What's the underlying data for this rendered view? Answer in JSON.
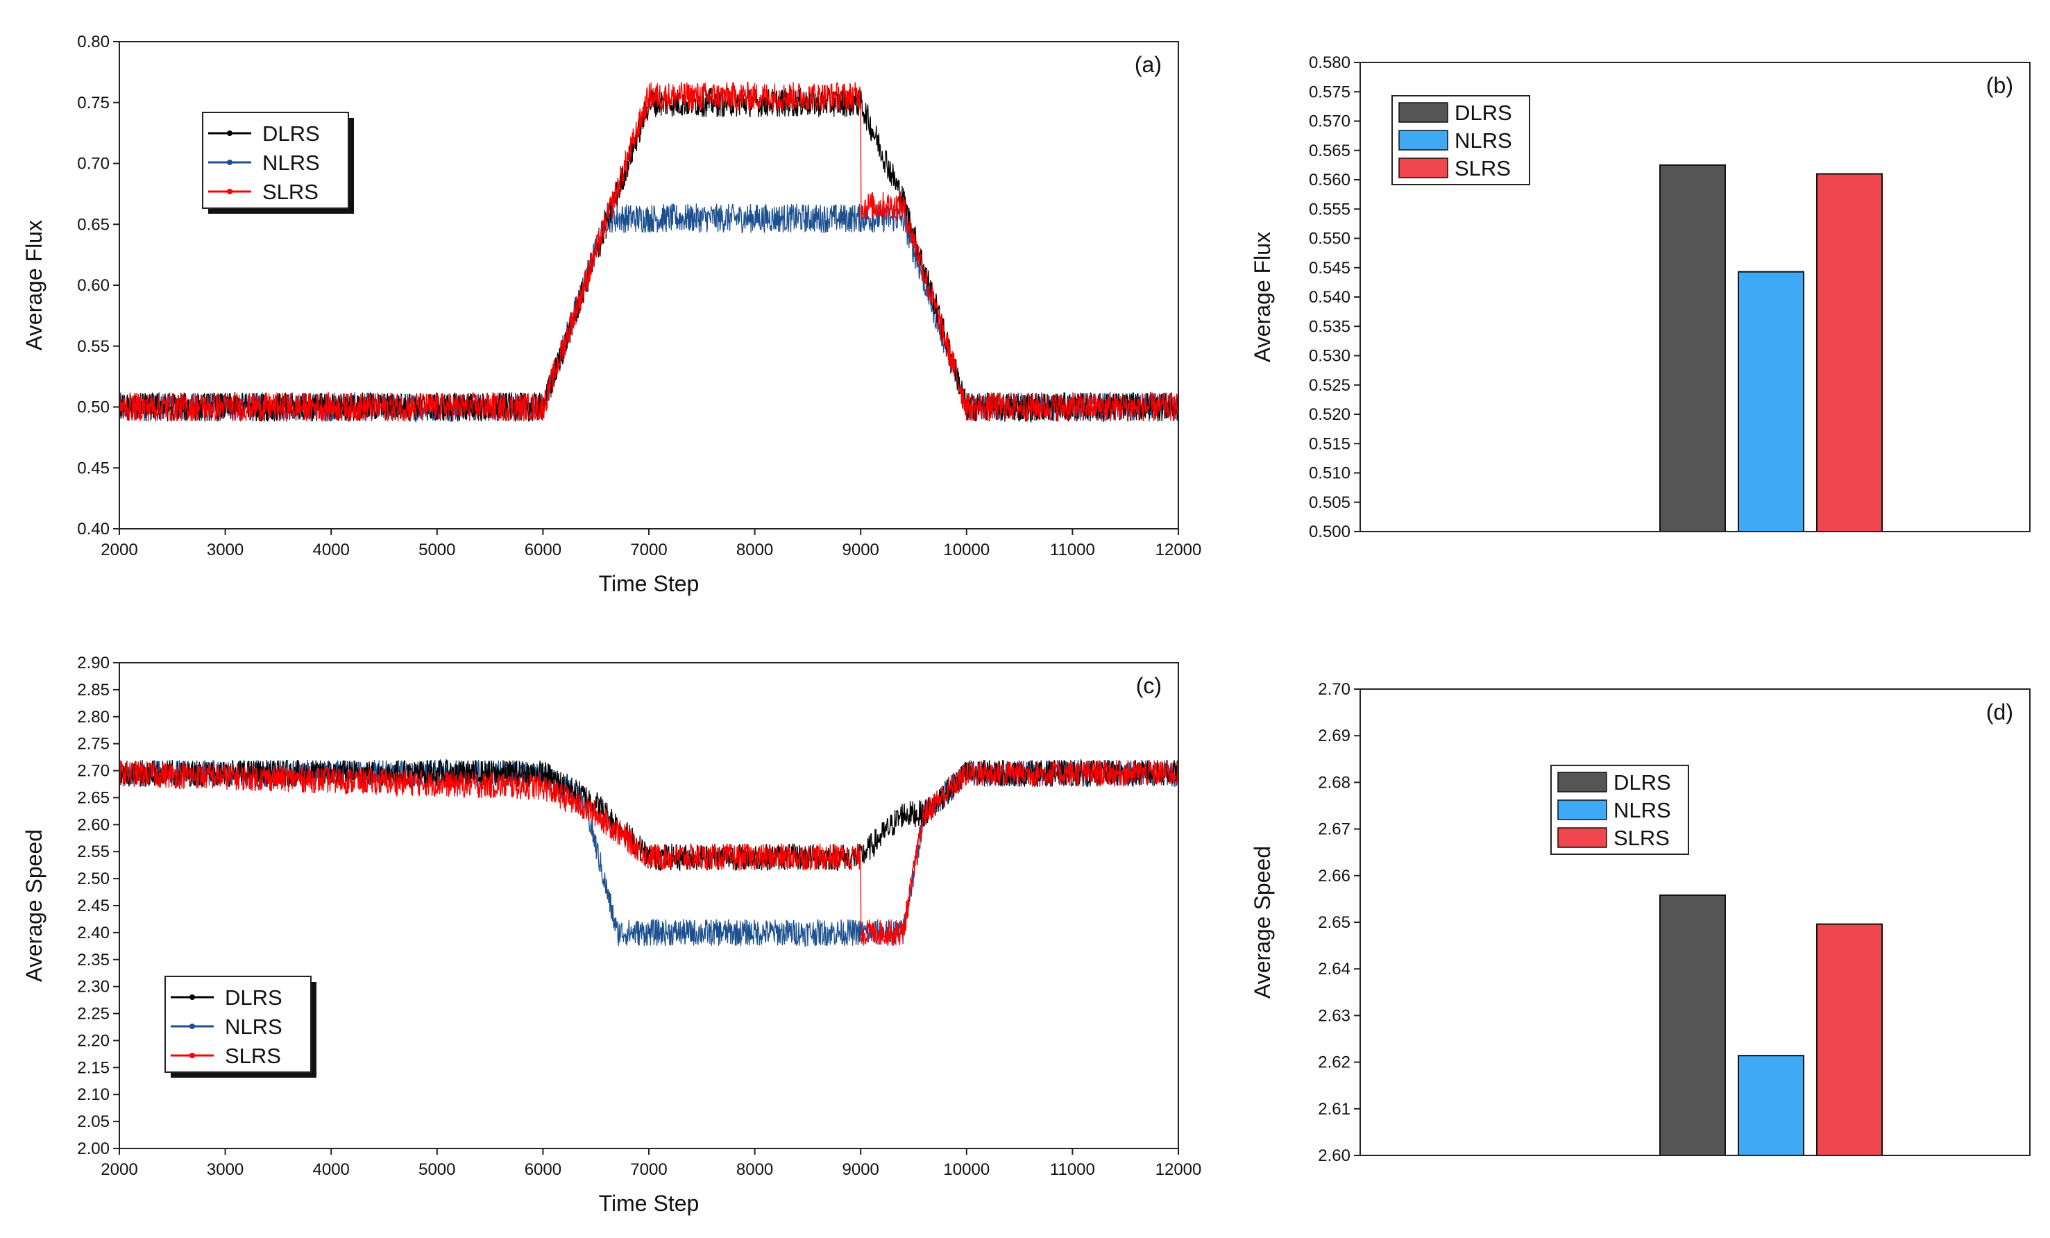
{
  "figure": {
    "background": "#ffffff",
    "colors": {
      "DLRS_line": "#000000",
      "NLRS_line": "#1c4f8f",
      "SLRS_line": "#ff0000",
      "DLRS_bar": "#555555",
      "NLRS_bar": "#3fa9f5",
      "SLRS_bar": "#f0464e"
    }
  },
  "chart_data": [
    {
      "id": "a",
      "type": "line",
      "panel_label": "(a)",
      "title": "",
      "xlabel": "Time Step",
      "ylabel": "Average Flux",
      "xlim": [
        2000,
        12000
      ],
      "ylim": [
        0.4,
        0.8
      ],
      "xticks": [
        "2000",
        "3000",
        "4000",
        "5000",
        "6000",
        "7000",
        "8000",
        "9000",
        "10000",
        "11000",
        "12000"
      ],
      "yticks": [
        "0.40",
        "0.45",
        "0.50",
        "0.55",
        "0.60",
        "0.65",
        "0.70",
        "0.75",
        "0.80"
      ],
      "legend": {
        "position": "top-left",
        "entries": [
          "DLRS",
          "NLRS",
          "SLRS"
        ]
      },
      "noise_amplitude": 0.012,
      "series": [
        {
          "name": "DLRS",
          "color": "#000000",
          "x": [
            2000,
            6000,
            7000,
            9000,
            9400,
            10000,
            12000
          ],
          "y": [
            0.5,
            0.5,
            0.75,
            0.75,
            0.67,
            0.5,
            0.5
          ]
        },
        {
          "name": "NLRS",
          "color": "#1c4f8f",
          "x": [
            2000,
            6000,
            6600,
            9000,
            9400,
            10000,
            12000
          ],
          "y": [
            0.5,
            0.5,
            0.655,
            0.655,
            0.655,
            0.5,
            0.5
          ]
        },
        {
          "name": "SLRS",
          "color": "#ff0000",
          "x": [
            2000,
            6000,
            7000,
            9000,
            9001,
            9400,
            10000,
            12000
          ],
          "y": [
            0.5,
            0.5,
            0.755,
            0.755,
            0.665,
            0.665,
            0.5,
            0.5
          ]
        }
      ]
    },
    {
      "id": "b",
      "type": "bar",
      "panel_label": "(b)",
      "title": "",
      "xlabel": "",
      "ylabel": "Average Flux",
      "ylim": [
        0.5,
        0.58
      ],
      "yticks": [
        "0.500",
        "0.505",
        "0.510",
        "0.515",
        "0.520",
        "0.525",
        "0.530",
        "0.535",
        "0.540",
        "0.545",
        "0.550",
        "0.555",
        "0.560",
        "0.565",
        "0.570",
        "0.575",
        "0.580"
      ],
      "legend": {
        "position": "top-left",
        "entries": [
          "DLRS",
          "NLRS",
          "SLRS"
        ]
      },
      "categories": [
        "DLRS",
        "NLRS",
        "SLRS"
      ],
      "values": [
        0.5625,
        0.5443,
        0.561
      ],
      "colors": [
        "#555555",
        "#3fa9f5",
        "#f0464e"
      ]
    },
    {
      "id": "c",
      "type": "line",
      "panel_label": "(c)",
      "title": "",
      "xlabel": "Time Step",
      "ylabel": "Average Speed",
      "xlim": [
        2000,
        12000
      ],
      "ylim": [
        2.0,
        2.9
      ],
      "xticks": [
        "2000",
        "3000",
        "4000",
        "5000",
        "6000",
        "7000",
        "8000",
        "9000",
        "10000",
        "11000",
        "12000"
      ],
      "yticks": [
        "2.00",
        "2.05",
        "2.10",
        "2.15",
        "2.20",
        "2.25",
        "2.30",
        "2.35",
        "2.40",
        "2.45",
        "2.50",
        "2.55",
        "2.60",
        "2.65",
        "2.70",
        "2.75",
        "2.80",
        "2.85",
        "2.90"
      ],
      "legend": {
        "position": "bottom-left",
        "entries": [
          "DLRS",
          "NLRS",
          "SLRS"
        ]
      },
      "noise_amplitude": 0.025,
      "series": [
        {
          "name": "DLRS",
          "color": "#000000",
          "x": [
            2000,
            6000,
            6500,
            7000,
            9000,
            9400,
            9600,
            10000,
            12000
          ],
          "y": [
            2.695,
            2.695,
            2.64,
            2.54,
            2.54,
            2.62,
            2.62,
            2.695,
            2.695
          ]
        },
        {
          "name": "NLRS",
          "color": "#1c4f8f",
          "x": [
            2000,
            6000,
            6400,
            6700,
            9000,
            9400,
            9600,
            10000,
            12000
          ],
          "y": [
            2.695,
            2.695,
            2.64,
            2.4,
            2.4,
            2.4,
            2.62,
            2.695,
            2.695
          ]
        },
        {
          "name": "SLRS",
          "color": "#ff0000",
          "x": [
            2000,
            6000,
            6500,
            7000,
            9000,
            9001,
            9400,
            9600,
            10000,
            12000
          ],
          "y": [
            2.695,
            2.67,
            2.62,
            2.54,
            2.54,
            2.4,
            2.4,
            2.62,
            2.695,
            2.695
          ]
        }
      ]
    },
    {
      "id": "d",
      "type": "bar",
      "panel_label": "(d)",
      "title": "",
      "xlabel": "",
      "ylabel": "Average Speed",
      "ylim": [
        2.6,
        2.7
      ],
      "yticks": [
        "2.60",
        "2.61",
        "2.62",
        "2.63",
        "2.64",
        "2.65",
        "2.66",
        "2.67",
        "2.68",
        "2.69",
        "2.70"
      ],
      "legend": {
        "position": "top-left",
        "entries": [
          "DLRS",
          "NLRS",
          "SLRS"
        ]
      },
      "categories": [
        "DLRS",
        "NLRS",
        "SLRS"
      ],
      "values": [
        2.6558,
        2.6214,
        2.6496
      ],
      "colors": [
        "#555555",
        "#3fa9f5",
        "#f0464e"
      ]
    }
  ]
}
